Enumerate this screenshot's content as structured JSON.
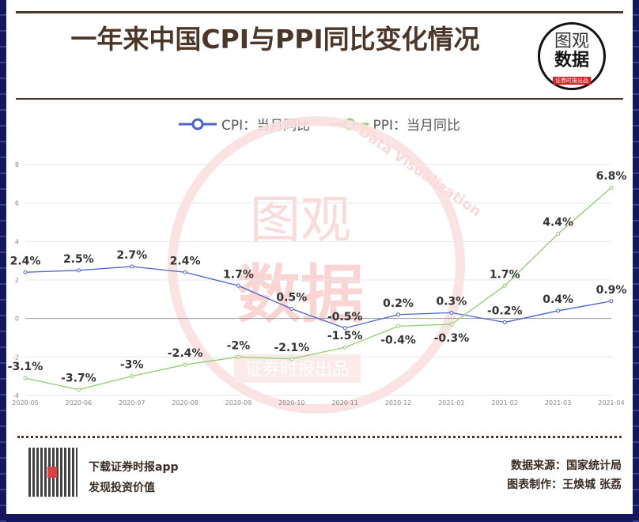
{
  "title": "一年来中国CPI与PPI同比变化情况",
  "logo": {
    "line1": "图观",
    "line2": "数据",
    "tag": "证券时报出品",
    "arc": "Data Visualization"
  },
  "watermark": {
    "line1": "图观",
    "line2": "数据",
    "tag": "证券时报出品",
    "arc": "Data Visualization"
  },
  "footer": {
    "app_line1": "下载证券时报app",
    "app_line2": "发现投资价值",
    "source": "数据来源：国家统计局",
    "credit": "图表制作：王焕城 张荔"
  },
  "colors": {
    "cpi": "#4a63d0",
    "ppi": "#8fcf6a",
    "title": "#4b3628",
    "frame": "#14165e"
  },
  "chart_data": {
    "type": "line",
    "title": "一年来中国CPI与PPI同比变化情况",
    "categories": [
      "2020-05",
      "2020-06",
      "2020-07",
      "2020-08",
      "2020-09",
      "2020-10",
      "2020-11",
      "2020-12",
      "2021-01",
      "2021-02",
      "2021-03",
      "2021-04"
    ],
    "yticks": [
      8,
      6,
      4,
      2,
      0,
      -2,
      -4
    ],
    "ylim": [
      -4,
      8
    ],
    "grid": true,
    "legend": "top",
    "series": [
      {
        "name": "CPI：当月同比",
        "values": [
          2.4,
          2.5,
          2.7,
          2.4,
          1.7,
          0.5,
          -0.5,
          0.2,
          0.3,
          -0.2,
          0.4,
          0.9
        ],
        "labels": [
          "2.4%",
          "2.5%",
          "2.7%",
          "2.4%",
          "1.7%",
          "0.5%",
          "-0.5%",
          "0.2%",
          "0.3%",
          "-0.2%",
          "0.4%",
          "0.9%"
        ]
      },
      {
        "name": "PPI：当月同比",
        "values": [
          -3.1,
          -3.7,
          -3,
          -2.4,
          -2,
          -2.1,
          -1.5,
          -0.4,
          -0.3,
          1.7,
          4.4,
          6.8
        ],
        "labels": [
          "-3.1%",
          "-3.7%",
          "-3%",
          "-2.4%",
          "-2%",
          "-2.1%",
          "-1.5%",
          "-0.4%",
          "-0.3%",
          "1.7%",
          "4.4%",
          "6.8%"
        ]
      }
    ]
  }
}
